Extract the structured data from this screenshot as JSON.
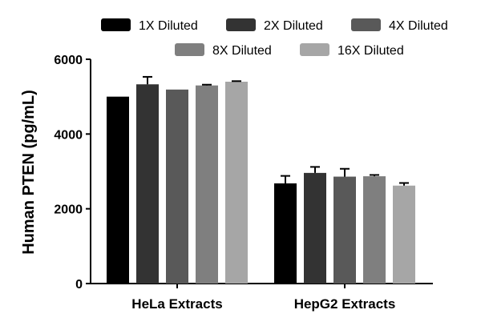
{
  "chart_data": {
    "type": "bar",
    "title": "",
    "xlabel": "",
    "ylabel": "Human PTEN (pg/mL)",
    "ylim": [
      0,
      6000
    ],
    "yticks": [
      0,
      2000,
      4000,
      6000
    ],
    "categories": [
      "HeLa Extracts",
      "HepG2 Extracts"
    ],
    "legend_position": "top",
    "grid": false,
    "series": [
      {
        "name": "1X Diluted",
        "color": "#000000",
        "values": [
          5000,
          2680
        ],
        "errors": [
          0,
          200
        ]
      },
      {
        "name": "2X Diluted",
        "color": "#333333",
        "values": [
          5330,
          2960
        ],
        "errors": [
          200,
          160
        ]
      },
      {
        "name": "4X Diluted",
        "color": "#595959",
        "values": [
          5190,
          2860
        ],
        "errors": [
          0,
          210
        ]
      },
      {
        "name": "8X Diluted",
        "color": "#7f7f7f",
        "values": [
          5300,
          2870
        ],
        "errors": [
          20,
          35
        ]
      },
      {
        "name": "16X Diluted",
        "color": "#a6a6a6",
        "values": [
          5400,
          2620
        ],
        "errors": [
          15,
          70
        ]
      }
    ]
  }
}
